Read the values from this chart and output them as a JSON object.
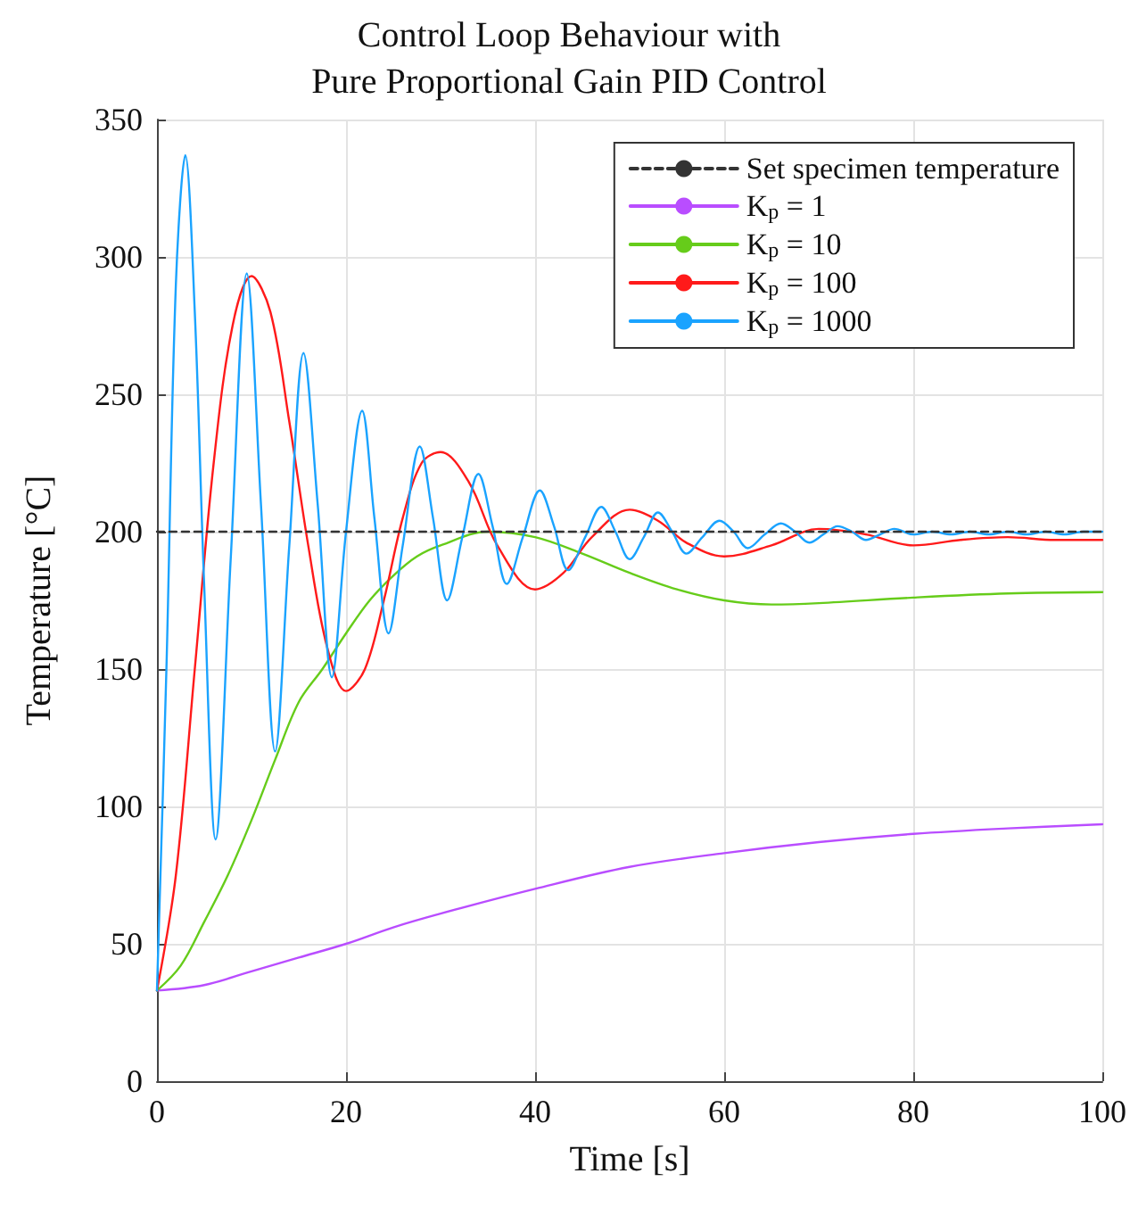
{
  "chart_data": {
    "type": "line",
    "title": "Control Loop Behaviour with\nPure Proportional Gain PID Control",
    "xlabel": "Time [s]",
    "ylabel": "Temperature [°C]",
    "xlim": [
      0,
      100
    ],
    "xticks": [
      0,
      20,
      40,
      60,
      80,
      100
    ],
    "ylim": [
      0,
      350
    ],
    "yticks": [
      0,
      50,
      100,
      150,
      200,
      250,
      300,
      350
    ],
    "grid": true,
    "legend": "top right",
    "marker": "none",
    "series": [
      {
        "name": "Set specimen temperature",
        "color": "#333333",
        "line_style": "dashed",
        "x": [
          0,
          100
        ],
        "values": [
          200,
          200
        ]
      },
      {
        "name": "K$_{p}$ = 1",
        "color": "#b94dff",
        "x": [
          0,
          5,
          10,
          15,
          20,
          25,
          30,
          40,
          50,
          60,
          70,
          80,
          90,
          100
        ],
        "values": [
          33,
          35,
          40,
          45,
          50,
          56,
          61,
          70,
          78,
          83,
          87,
          90,
          92,
          93.5
        ]
      },
      {
        "name": "K$_{p}$ = 10",
        "color": "#66cc1a",
        "x": [
          0,
          2.5,
          5,
          7.5,
          10,
          12.5,
          15,
          17.5,
          20,
          22.5,
          25,
          27.5,
          30,
          35,
          40,
          45,
          50,
          55,
          60,
          65,
          70,
          80,
          90,
          100
        ],
        "values": [
          33,
          42,
          58,
          75,
          95,
          117,
          138,
          150,
          163,
          175,
          184,
          191,
          195,
          200,
          198,
          192,
          185,
          179,
          175,
          173.5,
          174,
          176,
          177.5,
          178
        ]
      },
      {
        "name": "K$_{p}$ = 100",
        "color": "#ff1a1a",
        "x": [
          0,
          2,
          4,
          6,
          8,
          10,
          12,
          14,
          16,
          18,
          20,
          22,
          24,
          26,
          28,
          30,
          33,
          36,
          40,
          43,
          46,
          50,
          53,
          56,
          60,
          65,
          70,
          75,
          80,
          85,
          90,
          95,
          100
        ],
        "values": [
          33,
          75,
          150,
          225,
          275,
          293,
          280,
          240,
          195,
          158,
          142,
          150,
          175,
          205,
          225,
          229,
          218,
          195,
          179,
          185,
          198,
          208,
          204,
          196,
          191,
          195,
          201,
          199,
          195,
          197,
          198,
          197,
          197
        ]
      },
      {
        "name": "K$_{p}$ = 1000",
        "color": "#1aa3ff",
        "x": [
          0,
          1,
          2,
          3,
          4,
          5,
          6.2,
          7.8,
          9.5,
          11,
          12.5,
          14,
          15.5,
          17,
          18.5,
          20,
          21.7,
          23,
          24.5,
          26,
          27.8,
          29.2,
          30.7,
          32.3,
          34,
          35.5,
          37,
          38.7,
          40.5,
          42,
          43.5,
          45.3,
          47,
          48.5,
          50,
          51.5,
          53,
          54.5,
          56,
          57.7,
          59.5,
          61,
          62.5,
          64.3,
          66,
          67.5,
          69,
          70.5,
          72,
          73.5,
          75,
          76.5,
          78,
          80,
          82,
          84,
          86,
          88,
          90,
          92,
          94,
          96,
          98,
          100
        ],
        "values": [
          33,
          150,
          290,
          337,
          280,
          180,
          88,
          190,
          294,
          210,
          120,
          195,
          265,
          210,
          147,
          200,
          244,
          205,
          163,
          195,
          231,
          205,
          175,
          198,
          221,
          202,
          181,
          198,
          215,
          202,
          186,
          198,
          209,
          200,
          190,
          198,
          207,
          200,
          192,
          198,
          204,
          200,
          194,
          199,
          203,
          200,
          196,
          199,
          202,
          200,
          197,
          199,
          201,
          199,
          200,
          199,
          200,
          199,
          200,
          199,
          200,
          199,
          200,
          200
        ]
      }
    ]
  }
}
